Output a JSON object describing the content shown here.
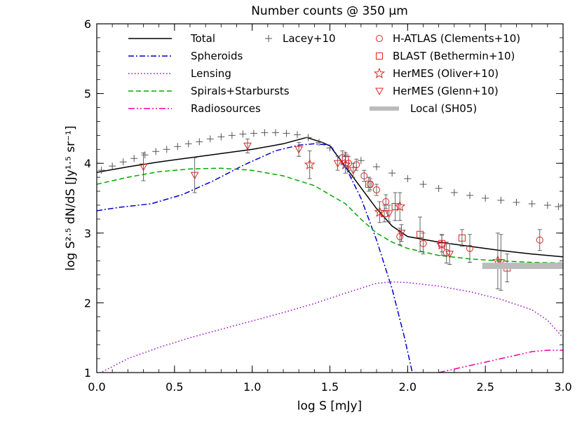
{
  "chart_data": {
    "type": "line",
    "title": "Number counts @ 350 μm",
    "xlabel": "log S [mJy]",
    "ylabel": "log S²·⁵ dN/dS [Jy¹·⁵ sr⁻¹]",
    "xlim": [
      0.0,
      3.0
    ],
    "ylim": [
      1,
      6
    ],
    "x_ticks": [
      "0.0",
      "0.5",
      "1.0",
      "1.5",
      "2.0",
      "2.5",
      "3.0"
    ],
    "y_ticks": [
      "1",
      "2",
      "3",
      "4",
      "5",
      "6"
    ],
    "grid": false,
    "legend_position": "top",
    "series": [
      {
        "name": "Total",
        "style": "solid",
        "color": "#000000",
        "x": [
          0.0,
          0.2,
          0.4,
          0.6,
          0.8,
          1.0,
          1.2,
          1.35,
          1.45,
          1.5,
          1.6,
          1.7,
          1.8,
          1.9,
          2.0,
          2.2,
          2.4,
          2.6,
          2.8,
          3.0
        ],
        "y": [
          3.87,
          3.95,
          4.02,
          4.08,
          4.14,
          4.2,
          4.28,
          4.37,
          4.3,
          4.25,
          3.95,
          3.65,
          3.35,
          3.1,
          2.95,
          2.87,
          2.81,
          2.75,
          2.7,
          2.66
        ]
      },
      {
        "name": "Spheroids",
        "style": "dashdot",
        "color": "#0000cc",
        "x": [
          0.0,
          0.15,
          0.35,
          0.55,
          0.75,
          0.95,
          1.15,
          1.3,
          1.4,
          1.5,
          1.6,
          1.7,
          1.8,
          1.9,
          1.98,
          2.03
        ],
        "y": [
          3.32,
          3.37,
          3.42,
          3.55,
          3.75,
          3.98,
          4.18,
          4.26,
          4.28,
          4.26,
          3.95,
          3.5,
          2.9,
          2.2,
          1.5,
          1.0
        ]
      },
      {
        "name": "Lensing",
        "style": "dotted",
        "color": "#9900cc",
        "x": [
          0.0,
          0.2,
          0.4,
          0.6,
          0.8,
          1.0,
          1.2,
          1.4,
          1.6,
          1.8,
          1.9,
          2.0,
          2.2,
          2.4,
          2.6,
          2.8,
          2.9,
          3.0
        ],
        "y": [
          0.97,
          1.2,
          1.36,
          1.5,
          1.62,
          1.74,
          1.86,
          1.99,
          2.14,
          2.28,
          2.3,
          2.29,
          2.24,
          2.16,
          2.05,
          1.9,
          1.75,
          1.5
        ]
      },
      {
        "name": "Spirals+Starbursts",
        "style": "dashed",
        "color": "#00aa00",
        "x": [
          0.0,
          0.2,
          0.4,
          0.6,
          0.8,
          1.0,
          1.2,
          1.4,
          1.6,
          1.7,
          1.8,
          1.9,
          2.0,
          2.2,
          2.4,
          2.6,
          2.8,
          3.0
        ],
        "y": [
          3.7,
          3.8,
          3.88,
          3.92,
          3.93,
          3.9,
          3.82,
          3.68,
          3.42,
          3.2,
          3.0,
          2.87,
          2.78,
          2.68,
          2.63,
          2.6,
          2.58,
          2.57
        ]
      },
      {
        "name": "Radiosources",
        "style": "dashdotdot",
        "color": "#ee00aa",
        "x": [
          2.2,
          2.3,
          2.4,
          2.5,
          2.6,
          2.7,
          2.8,
          2.9,
          3.0
        ],
        "y": [
          1.0,
          1.05,
          1.1,
          1.15,
          1.2,
          1.25,
          1.3,
          1.32,
          1.32
        ]
      },
      {
        "name": "Lacey+10",
        "style": "plus",
        "color": "#555555",
        "x": [
          0.03,
          0.1,
          0.17,
          0.24,
          0.31,
          0.38,
          0.45,
          0.52,
          0.59,
          0.66,
          0.73,
          0.8,
          0.87,
          0.94,
          1.01,
          1.08,
          1.15,
          1.22,
          1.29,
          1.36,
          1.43,
          1.5,
          1.6,
          1.7,
          1.8,
          1.9,
          2.0,
          2.1,
          2.2,
          2.3,
          2.4,
          2.5,
          2.6,
          2.7,
          2.8,
          2.9,
          2.97
        ],
        "y": [
          3.9,
          3.96,
          4.02,
          4.07,
          4.12,
          4.17,
          4.2,
          4.24,
          4.28,
          4.31,
          4.35,
          4.38,
          4.4,
          4.42,
          4.43,
          4.44,
          4.44,
          4.43,
          4.41,
          4.37,
          4.3,
          4.22,
          4.12,
          4.04,
          3.95,
          3.86,
          3.78,
          3.7,
          3.64,
          3.58,
          3.54,
          3.5,
          3.47,
          3.44,
          3.42,
          3.4,
          3.38
        ]
      },
      {
        "name": "H-ATLAS (Clements+10)",
        "style": "circle",
        "color": "#dd2222",
        "x": [
          1.58,
          1.62,
          1.67,
          1.72,
          1.76,
          1.8,
          1.86,
          1.95,
          2.1,
          2.25,
          2.4,
          2.85
        ],
        "y": [
          4.08,
          4.0,
          3.98,
          3.82,
          3.7,
          3.62,
          3.45,
          2.95,
          2.85,
          2.72,
          2.78,
          2.9
        ],
        "err": [
          0.1,
          0.1,
          0.08,
          0.08,
          0.08,
          0.08,
          0.1,
          0.12,
          0.15,
          0.15,
          0.2,
          0.15
        ]
      },
      {
        "name": "BLAST (Bethermin+10)",
        "style": "square",
        "color": "#dd2222",
        "x": [
          1.6,
          1.75,
          1.85,
          1.92,
          2.08,
          2.22,
          2.35,
          2.64
        ],
        "y": [
          4.05,
          3.7,
          3.28,
          3.38,
          2.98,
          2.85,
          2.93,
          2.5
        ],
        "err": [
          0.1,
          0.1,
          0.12,
          0.2,
          0.25,
          0.12,
          0.12,
          0.2
        ]
      },
      {
        "name": "HerMES (Oliver+10)",
        "style": "star",
        "color": "#dd2222",
        "x": [
          1.37,
          1.6,
          1.82,
          1.95,
          2.22,
          2.58
        ],
        "y": [
          3.98,
          3.98,
          3.3,
          3.38,
          2.83,
          2.6
        ],
        "err": [
          0.2,
          0.12,
          0.15,
          0.2,
          0.15,
          0.4
        ]
      },
      {
        "name": "HerMES (Glenn+10)",
        "style": "triangle",
        "color": "#dd2222",
        "x": [
          0.3,
          0.63,
          0.97,
          1.3,
          1.55,
          1.65,
          1.88,
          1.96,
          2.27,
          2.6
        ],
        "y": [
          3.95,
          3.83,
          4.25,
          4.2,
          4.0,
          3.9,
          3.28,
          3.0,
          2.7,
          2.58
        ],
        "err": [
          0.2,
          0.25,
          0.1,
          0.1,
          0.1,
          0.1,
          0.12,
          0.12,
          0.15,
          0.4
        ]
      },
      {
        "name": "Local (SH05)",
        "style": "band",
        "color": "#bbbbbb",
        "x": [
          2.48,
          3.0
        ],
        "y": [
          2.53,
          2.53
        ]
      }
    ]
  }
}
